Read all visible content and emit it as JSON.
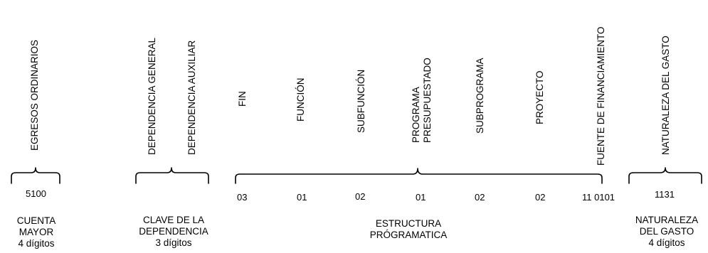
{
  "vertical_labels": {
    "egresos": "EGRESOS ORDINARIOS",
    "dep_general": "DEPENDENCIA GENERAL",
    "dep_auxiliar": "DEPENDENCIA AUXILIAR",
    "fin": "FIN",
    "funcion": "FUNCIÓN",
    "subfuncion": "SUBFUNCIÓN",
    "programa_l1": "PROGRAMA",
    "programa_l2": "PRESUPUESTADO",
    "subprograma": "SUBPROGRAMA",
    "proyecto": "PROYECTO",
    "fuente": "FUENTE DE FINANCIAMIENTO",
    "naturaleza": "NATURALEZA DEL GASTO"
  },
  "codes": {
    "cuenta": "5100",
    "fin": "03",
    "funcion": "01",
    "subfuncion": "02",
    "programa": "01",
    "subprograma": "02",
    "proyecto": "02",
    "fuente": "11 0101",
    "naturaleza": "1131"
  },
  "captions": {
    "cuenta": [
      "CUENTA",
      "MAYOR",
      "4 dígitos"
    ],
    "clave": [
      "CLAVE DE LA",
      "DEPENDENCIA",
      "3 dígitos"
    ],
    "estructura": [
      "ESTRUCTURA",
      "PRÓGRAMATICA"
    ],
    "naturaleza": [
      "NATURALEZA",
      "DEL GASTO",
      "4 dígitos"
    ]
  }
}
